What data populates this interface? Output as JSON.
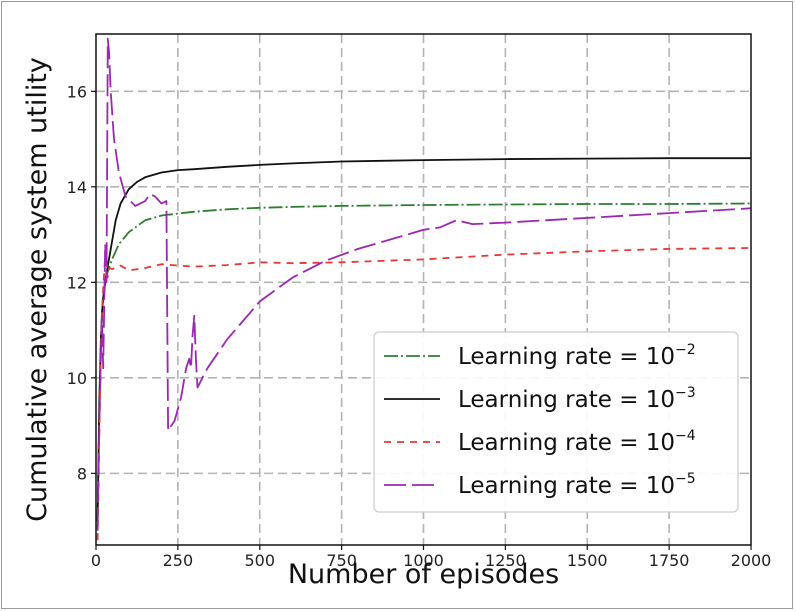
{
  "chart_data": {
    "type": "line",
    "title": "",
    "xlabel": "Number of episodes",
    "ylabel": "Cumulative average system utility",
    "xlim": [
      0,
      2000
    ],
    "ylim": [
      6.5,
      17.2
    ],
    "xticks": [
      0,
      250,
      500,
      750,
      1000,
      1250,
      1500,
      1750,
      2000
    ],
    "yticks": [
      8,
      10,
      12,
      14,
      16
    ],
    "grid": true,
    "grid_style": "dashed",
    "legend_position": "lower-right",
    "series": [
      {
        "name": "Learning rate = 10",
        "exponent": "−2",
        "color": "#2e7d32",
        "dash": "14,3,2,3",
        "points": [
          [
            5,
            7.0
          ],
          [
            10,
            9.3
          ],
          [
            15,
            10.8
          ],
          [
            20,
            11.6
          ],
          [
            30,
            12.1
          ],
          [
            40,
            12.3
          ],
          [
            50,
            12.5
          ],
          [
            70,
            12.8
          ],
          [
            100,
            13.05
          ],
          [
            150,
            13.3
          ],
          [
            200,
            13.4
          ],
          [
            300,
            13.48
          ],
          [
            400,
            13.53
          ],
          [
            500,
            13.56
          ],
          [
            600,
            13.58
          ],
          [
            750,
            13.6
          ],
          [
            1000,
            13.62
          ],
          [
            1250,
            13.63
          ],
          [
            1500,
            13.64
          ],
          [
            1750,
            13.64
          ],
          [
            2000,
            13.65
          ]
        ]
      },
      {
        "name": "Learning rate = 10",
        "exponent": "−3",
        "color": "#111111",
        "dash": "",
        "points": [
          [
            5,
            7.0
          ],
          [
            10,
            9.5
          ],
          [
            15,
            10.8
          ],
          [
            20,
            11.5
          ],
          [
            30,
            12.1
          ],
          [
            40,
            12.5
          ],
          [
            50,
            12.9
          ],
          [
            60,
            13.3
          ],
          [
            75,
            13.65
          ],
          [
            100,
            13.95
          ],
          [
            125,
            14.1
          ],
          [
            150,
            14.2
          ],
          [
            200,
            14.3
          ],
          [
            250,
            14.35
          ],
          [
            300,
            14.37
          ],
          [
            400,
            14.42
          ],
          [
            500,
            14.46
          ],
          [
            600,
            14.49
          ],
          [
            750,
            14.53
          ],
          [
            1000,
            14.56
          ],
          [
            1250,
            14.58
          ],
          [
            1500,
            14.59
          ],
          [
            1750,
            14.6
          ],
          [
            2000,
            14.6
          ]
        ]
      },
      {
        "name": "Learning rate = 10",
        "exponent": "−4",
        "color": "#e53935",
        "dash": "7,6",
        "points": [
          [
            5,
            6.6
          ],
          [
            10,
            8.8
          ],
          [
            15,
            10.6
          ],
          [
            20,
            11.6
          ],
          [
            25,
            12.2
          ],
          [
            30,
            12.8
          ],
          [
            35,
            12.1
          ],
          [
            40,
            12.3
          ],
          [
            50,
            12.28
          ],
          [
            75,
            12.35
          ],
          [
            100,
            12.25
          ],
          [
            150,
            12.3
          ],
          [
            200,
            12.38
          ],
          [
            250,
            12.35
          ],
          [
            300,
            12.33
          ],
          [
            400,
            12.36
          ],
          [
            500,
            12.42
          ],
          [
            600,
            12.4
          ],
          [
            750,
            12.42
          ],
          [
            1000,
            12.48
          ],
          [
            1250,
            12.58
          ],
          [
            1500,
            12.65
          ],
          [
            1750,
            12.7
          ],
          [
            2000,
            12.72
          ]
        ]
      },
      {
        "name": "Learning rate = 10",
        "exponent": "−5",
        "color": "#9c27b0",
        "dash": "22,6",
        "points": [
          [
            5,
            6.8
          ],
          [
            10,
            9.0
          ],
          [
            15,
            10.5
          ],
          [
            18,
            11.3
          ],
          [
            22,
            10.2
          ],
          [
            25,
            11.5
          ],
          [
            28,
            12.8
          ],
          [
            32,
            12.0
          ],
          [
            36,
            17.1
          ],
          [
            40,
            16.8
          ],
          [
            45,
            16.0
          ],
          [
            55,
            15.0
          ],
          [
            70,
            14.3
          ],
          [
            90,
            13.8
          ],
          [
            120,
            13.6
          ],
          [
            150,
            13.7
          ],
          [
            165,
            13.85
          ],
          [
            180,
            13.8
          ],
          [
            200,
            13.65
          ],
          [
            215,
            13.7
          ],
          [
            220,
            8.9
          ],
          [
            240,
            9.1
          ],
          [
            260,
            9.6
          ],
          [
            275,
            10.2
          ],
          [
            285,
            10.4
          ],
          [
            290,
            10.2
          ],
          [
            295,
            10.9
          ],
          [
            300,
            11.3
          ],
          [
            305,
            10.4
          ],
          [
            310,
            9.8
          ],
          [
            340,
            10.2
          ],
          [
            400,
            10.8
          ],
          [
            500,
            11.6
          ],
          [
            600,
            12.1
          ],
          [
            700,
            12.45
          ],
          [
            800,
            12.7
          ],
          [
            900,
            12.9
          ],
          [
            1000,
            13.1
          ],
          [
            1050,
            13.15
          ],
          [
            1100,
            13.3
          ],
          [
            1150,
            13.22
          ],
          [
            1250,
            13.25
          ],
          [
            1500,
            13.35
          ],
          [
            1750,
            13.45
          ],
          [
            2000,
            13.55
          ]
        ]
      }
    ]
  }
}
